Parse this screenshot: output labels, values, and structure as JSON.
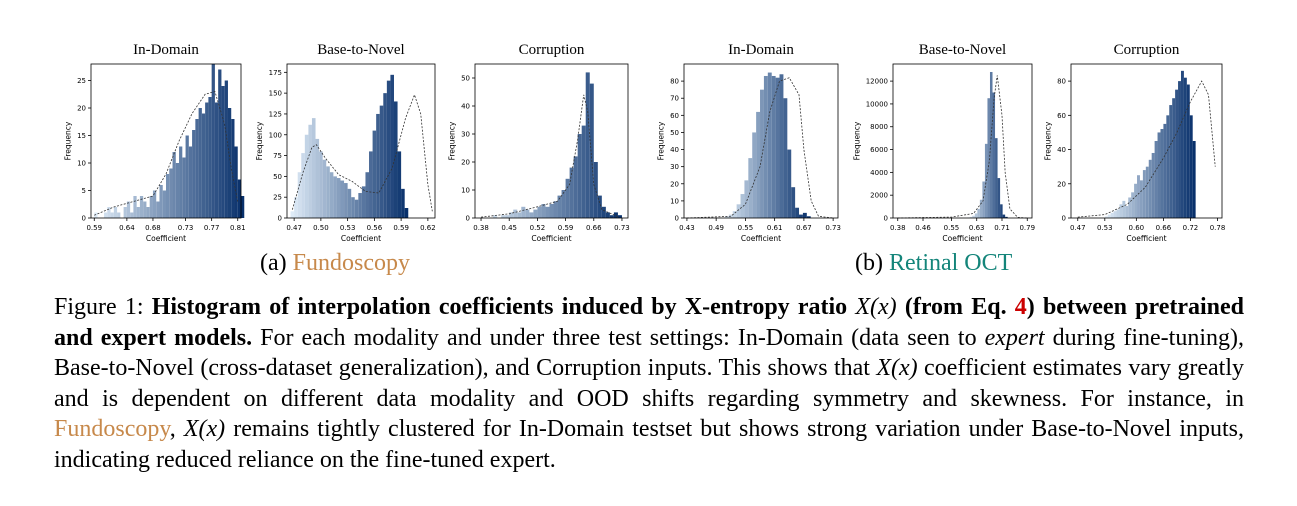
{
  "colors": {
    "fundoscopy": "#c7894b",
    "retinal_oct": "#14857a",
    "eq_ref": "#cc0000",
    "bar_light": "#deebf7",
    "bar_dark": "#08306b"
  },
  "subcaptions": {
    "a": {
      "prefix": "(a) ",
      "name": "Fundoscopy"
    },
    "b": {
      "prefix": "(b) ",
      "name": "Retinal OCT"
    }
  },
  "caption": {
    "label": "Figure 1: ",
    "bold_1": "Histogram of interpolation coefficients induced by X-entropy ratio ",
    "math_1": "X(x)",
    "bold_2": " (from Eq. ",
    "eq_ref": "4",
    "bold_3": ") between pretrained and expert models.",
    "text_1": " For each modality and under three test settings: In-Domain (data seen to ",
    "italic_1": "expert",
    "text_2": " during fine-tuning), Base-to-Novel (cross-dataset generalization), and Corruption inputs. This shows that ",
    "math_2": "X(x)",
    "text_3": " coefficient estimates vary greatly and is dependent on different data modality and OOD shifts regarding symmetry and skewness. For instance, in ",
    "fundo": "Fundoscopy",
    "text_4": ", ",
    "math_3": "X(x)",
    "text_5": " remains tightly clustered for In-Domain testset but shows strong variation under Base-to-Novel inputs, indicating reduced reliance on the fine-tuned expert."
  },
  "chart_data": [
    {
      "type": "bar",
      "group": "Fundoscopy",
      "title": "In-Domain",
      "xlabel": "Coefficient",
      "ylabel": "Frequency",
      "xlim": [
        0.585,
        0.815
      ],
      "ylim": [
        0,
        28
      ],
      "xticks": [
        0.59,
        0.64,
        0.68,
        0.73,
        0.77,
        0.81
      ],
      "xtick_labels": [
        "0.59",
        "0.64",
        "0.68",
        "0.73",
        "0.77",
        "0.81"
      ],
      "yticks": [
        0,
        5,
        10,
        15,
        20,
        25
      ],
      "ytick_labels": [
        "0",
        "5",
        "10",
        "15",
        "20",
        "25"
      ],
      "bins_start": 0.59,
      "bin_width": 0.005,
      "values": [
        1,
        0,
        0,
        1,
        2,
        1,
        2,
        1,
        0,
        2,
        3,
        1,
        4,
        2,
        4,
        3,
        2,
        4,
        5,
        3,
        6,
        5,
        8,
        9,
        12,
        10,
        13,
        11,
        15,
        13,
        16,
        18,
        20,
        19,
        21,
        22,
        28,
        21,
        27,
        24,
        25,
        20,
        18,
        13,
        7,
        4
      ],
      "kde": [
        [
          0.59,
          0.5
        ],
        [
          0.62,
          2
        ],
        [
          0.65,
          3
        ],
        [
          0.68,
          4
        ],
        [
          0.7,
          8
        ],
        [
          0.72,
          14
        ],
        [
          0.74,
          19
        ],
        [
          0.76,
          22.5
        ],
        [
          0.775,
          23
        ],
        [
          0.79,
          17
        ],
        [
          0.8,
          9
        ],
        [
          0.81,
          3
        ]
      ]
    },
    {
      "type": "bar",
      "group": "Fundoscopy",
      "title": "Base-to-Novel",
      "xlabel": "Coefficient",
      "ylabel": "Frequency",
      "xlim": [
        0.462,
        0.628
      ],
      "ylim": [
        0,
        185
      ],
      "xticks": [
        0.47,
        0.5,
        0.53,
        0.56,
        0.59,
        0.62
      ],
      "xtick_labels": [
        "0.47",
        "0.50",
        "0.53",
        "0.56",
        "0.59",
        "0.62"
      ],
      "yticks": [
        0,
        25,
        50,
        75,
        100,
        125,
        150,
        175
      ],
      "ytick_labels": [
        "0",
        "25",
        "50",
        "75",
        "100",
        "125",
        "150",
        "175"
      ],
      "bins_start": 0.466,
      "bin_width": 0.004,
      "values": [
        8,
        25,
        55,
        78,
        100,
        112,
        120,
        95,
        80,
        70,
        62,
        55,
        50,
        48,
        45,
        42,
        35,
        25,
        22,
        30,
        38,
        55,
        80,
        105,
        125,
        135,
        150,
        165,
        172,
        140,
        80,
        35,
        12
      ],
      "kde": [
        [
          0.468,
          10
        ],
        [
          0.48,
          55
        ],
        [
          0.49,
          85
        ],
        [
          0.495,
          88
        ],
        [
          0.505,
          72
        ],
        [
          0.52,
          52
        ],
        [
          0.535,
          44
        ],
        [
          0.55,
          32
        ],
        [
          0.565,
          30
        ],
        [
          0.58,
          60
        ],
        [
          0.595,
          120
        ],
        [
          0.605,
          148
        ],
        [
          0.612,
          125
        ],
        [
          0.62,
          40
        ],
        [
          0.625,
          8
        ]
      ]
    },
    {
      "type": "bar",
      "group": "Fundoscopy",
      "title": "Corruption",
      "xlabel": "Coefficient",
      "ylabel": "Frequency",
      "xlim": [
        0.365,
        0.745
      ],
      "ylim": [
        0,
        55
      ],
      "xticks": [
        0.38,
        0.45,
        0.52,
        0.59,
        0.66,
        0.73
      ],
      "xtick_labels": [
        "0.38",
        "0.45",
        "0.52",
        "0.59",
        "0.66",
        "0.73"
      ],
      "yticks": [
        0,
        10,
        20,
        30,
        40,
        50
      ],
      "ytick_labels": [
        "0",
        "10",
        "20",
        "30",
        "40",
        "50"
      ],
      "bins_start": 0.38,
      "bin_width": 0.01,
      "values": [
        0,
        0,
        0,
        1,
        0,
        1,
        1,
        2,
        3,
        2,
        4,
        3,
        2,
        3,
        4,
        5,
        4,
        5,
        6,
        8,
        10,
        14,
        18,
        22,
        30,
        33,
        52,
        48,
        20,
        8,
        4,
        2,
        1,
        2,
        1
      ],
      "kde": [
        [
          0.38,
          0.3
        ],
        [
          0.45,
          1.5
        ],
        [
          0.52,
          4
        ],
        [
          0.57,
          6
        ],
        [
          0.6,
          12
        ],
        [
          0.62,
          28
        ],
        [
          0.635,
          44
        ],
        [
          0.645,
          38
        ],
        [
          0.66,
          12
        ],
        [
          0.68,
          3
        ],
        [
          0.72,
          0.5
        ]
      ]
    },
    {
      "type": "bar",
      "group": "Retinal OCT",
      "title": "In-Domain",
      "xlabel": "Coefficient",
      "ylabel": "Frequency",
      "xlim": [
        0.424,
        0.74
      ],
      "ylim": [
        0,
        90
      ],
      "xticks": [
        0.43,
        0.49,
        0.55,
        0.61,
        0.67,
        0.73
      ],
      "xtick_labels": [
        "0.43",
        "0.49",
        "0.55",
        "0.61",
        "0.67",
        "0.73"
      ],
      "yticks": [
        0,
        10,
        20,
        30,
        40,
        50,
        60,
        70,
        80
      ],
      "ytick_labels": [
        "0",
        "10",
        "20",
        "30",
        "40",
        "50",
        "60",
        "70",
        "80"
      ],
      "bins_start": 0.5,
      "bin_width": 0.008,
      "values": [
        0,
        1,
        2,
        4,
        8,
        14,
        22,
        35,
        50,
        62,
        75,
        83,
        85,
        83,
        82,
        84,
        70,
        40,
        18,
        6,
        2,
        3,
        1
      ],
      "kde": [
        [
          0.43,
          0
        ],
        [
          0.52,
          1
        ],
        [
          0.55,
          8
        ],
        [
          0.58,
          30
        ],
        [
          0.6,
          62
        ],
        [
          0.62,
          80
        ],
        [
          0.64,
          82
        ],
        [
          0.66,
          72
        ],
        [
          0.67,
          40
        ],
        [
          0.685,
          10
        ],
        [
          0.7,
          1
        ],
        [
          0.73,
          0
        ]
      ]
    },
    {
      "type": "bar",
      "group": "Retinal OCT",
      "title": "Base-to-Novel",
      "xlabel": "Coefficient",
      "ylabel": "Frequency",
      "xlim": [
        0.365,
        0.805
      ],
      "ylim": [
        0,
        13500
      ],
      "xticks": [
        0.38,
        0.46,
        0.55,
        0.63,
        0.71,
        0.79
      ],
      "xtick_labels": [
        "0.38",
        "0.46",
        "0.55",
        "0.63",
        "0.71",
        "0.79"
      ],
      "yticks": [
        0,
        2000,
        4000,
        6000,
        8000,
        10000,
        12000
      ],
      "ytick_labels": [
        "0",
        "2000",
        "4000",
        "6000",
        "8000",
        "10000",
        "12000"
      ],
      "bins_start": 0.6,
      "bin_width": 0.008,
      "values": [
        50,
        100,
        200,
        400,
        800,
        1600,
        3200,
        6500,
        10500,
        12800,
        11000,
        7000,
        3500,
        1200,
        300,
        100
      ],
      "kde": [
        [
          0.38,
          0
        ],
        [
          0.55,
          80
        ],
        [
          0.62,
          400
        ],
        [
          0.65,
          1500
        ],
        [
          0.67,
          5000
        ],
        [
          0.685,
          10500
        ],
        [
          0.695,
          12500
        ],
        [
          0.71,
          9000
        ],
        [
          0.72,
          4000
        ],
        [
          0.735,
          800
        ],
        [
          0.76,
          50
        ],
        [
          0.79,
          0
        ]
      ]
    },
    {
      "type": "bar",
      "group": "Retinal OCT",
      "title": "Corruption",
      "xlabel": "Coefficient",
      "ylabel": "Frequency",
      "xlim": [
        0.455,
        0.79
      ],
      "ylim": [
        0,
        90
      ],
      "xticks": [
        0.47,
        0.53,
        0.6,
        0.66,
        0.72,
        0.78
      ],
      "xtick_labels": [
        "0.47",
        "0.53",
        "0.60",
        "0.66",
        "0.72",
        "0.78"
      ],
      "yticks": [
        0,
        20,
        40,
        60,
        80
      ],
      "ytick_labels": [
        "0",
        "20",
        "40",
        "60",
        "80"
      ],
      "bins_start": 0.53,
      "bin_width": 0.0065,
      "values": [
        1,
        2,
        3,
        4,
        5,
        8,
        10,
        7,
        12,
        15,
        20,
        25,
        22,
        28,
        30,
        34,
        38,
        45,
        50,
        52,
        55,
        60,
        66,
        70,
        75,
        80,
        86,
        82,
        78,
        60,
        45
      ],
      "kde": [
        [
          0.47,
          0.5
        ],
        [
          0.53,
          2
        ],
        [
          0.58,
          8
        ],
        [
          0.62,
          18
        ],
        [
          0.66,
          35
        ],
        [
          0.69,
          50
        ],
        [
          0.72,
          68
        ],
        [
          0.745,
          80
        ],
        [
          0.76,
          72
        ],
        [
          0.775,
          30
        ]
      ]
    }
  ]
}
